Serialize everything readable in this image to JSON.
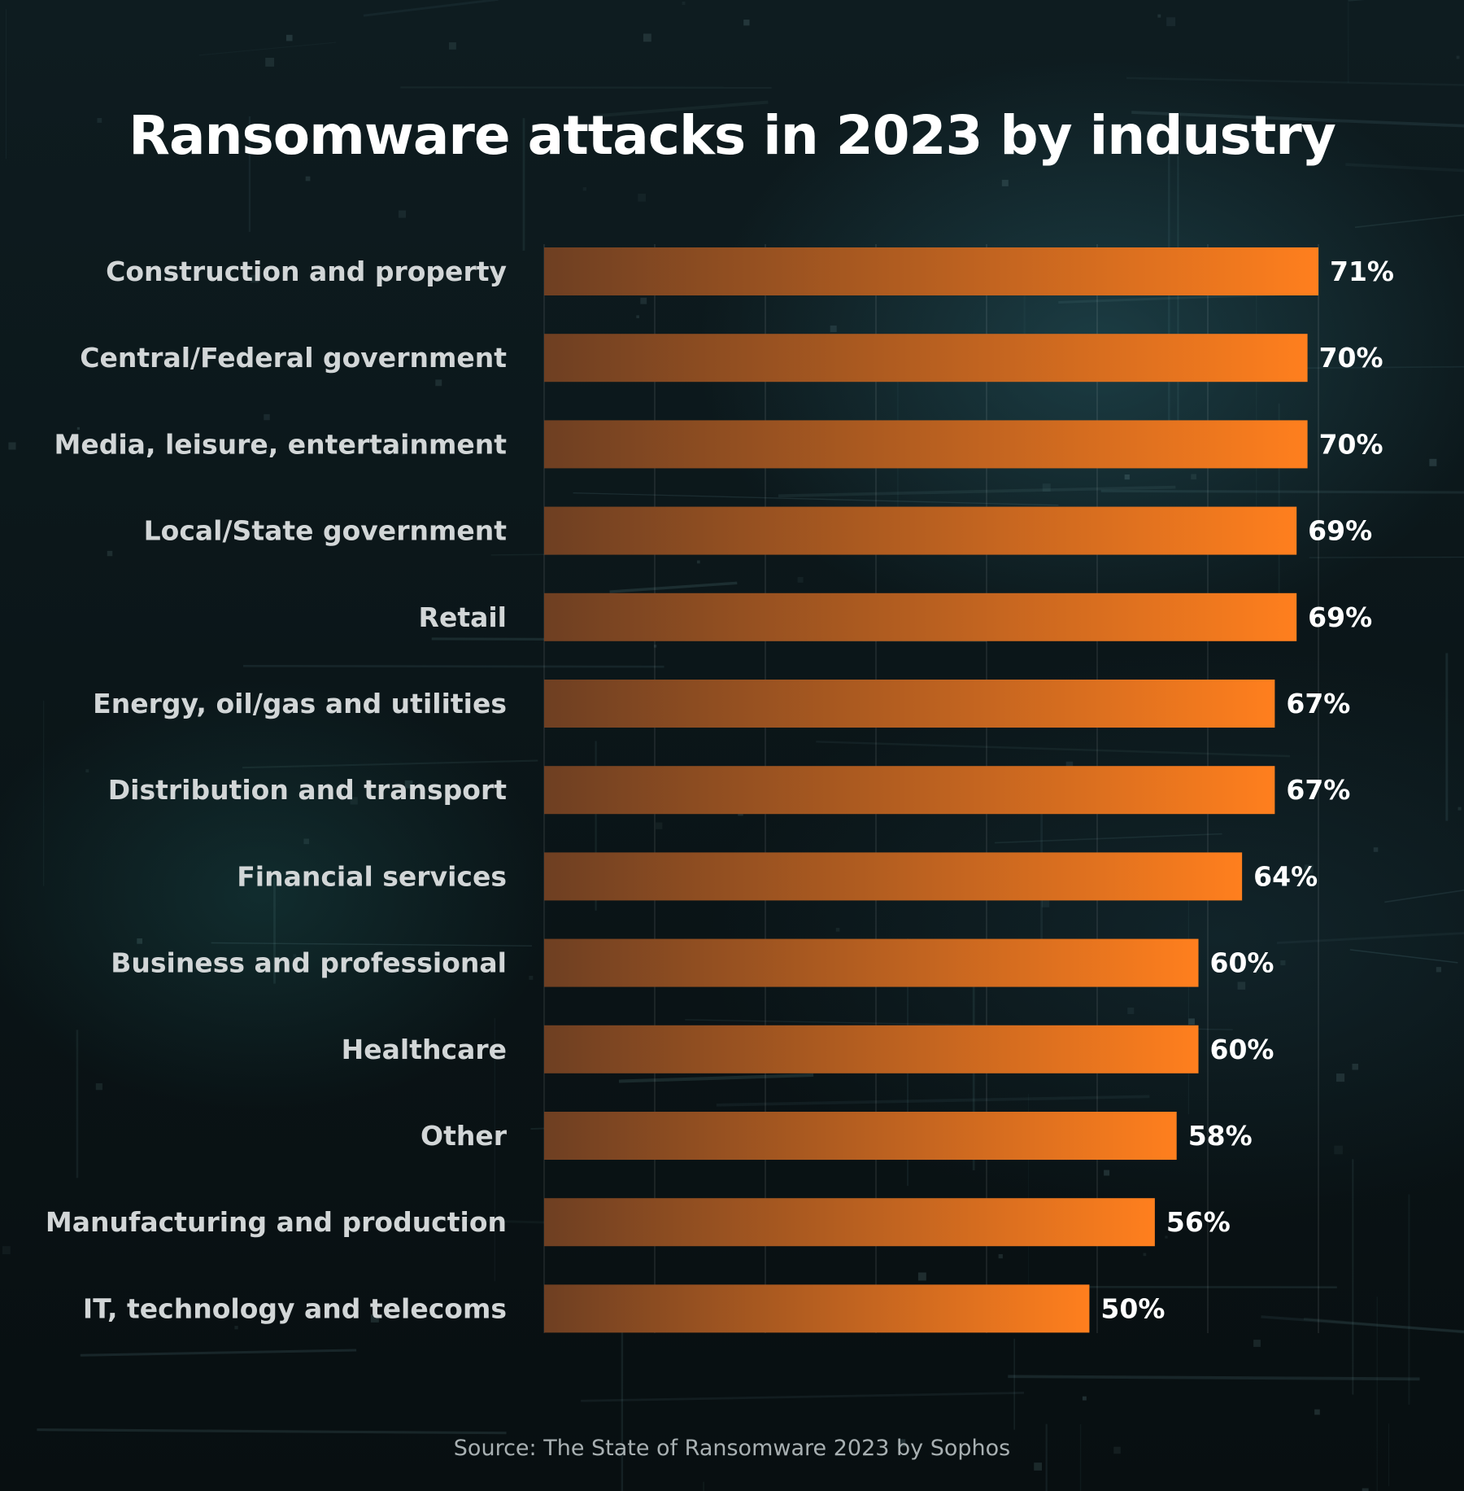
{
  "chart_data": {
    "type": "bar",
    "orientation": "horizontal",
    "title": "Ransomware attacks in 2023 by industry",
    "source": "Source: The State of Ransomware 2023 by Sophos",
    "categories": [
      "Construction and property",
      "Central/Federal government",
      "Media, leisure, entertainment",
      "Local/State government",
      "Retail",
      "Energy, oil/gas and utilities",
      "Distribution and transport",
      "Financial services",
      "Business and professional",
      "Healthcare",
      "Other",
      "Manufacturing and production",
      "IT, technology and telecoms"
    ],
    "values": [
      71,
      70,
      70,
      69,
      69,
      67,
      67,
      64,
      60,
      60,
      58,
      56,
      50
    ],
    "value_labels": [
      "71%",
      "70%",
      "70%",
      "69%",
      "69%",
      "67%",
      "67%",
      "64%",
      "60%",
      "60%",
      "58%",
      "56%",
      "50%"
    ],
    "unit": "%",
    "xlim": [
      0,
      71
    ],
    "grid": true,
    "legend": "none",
    "colors": {
      "bar_start": "#6e3f22",
      "bar_end": "#ff7f1e",
      "category_label": "#d2d6d7",
      "value_label": "#ffffff",
      "title": "#ffffff",
      "source": "#a8b0b2",
      "background": "#0b1619"
    }
  }
}
